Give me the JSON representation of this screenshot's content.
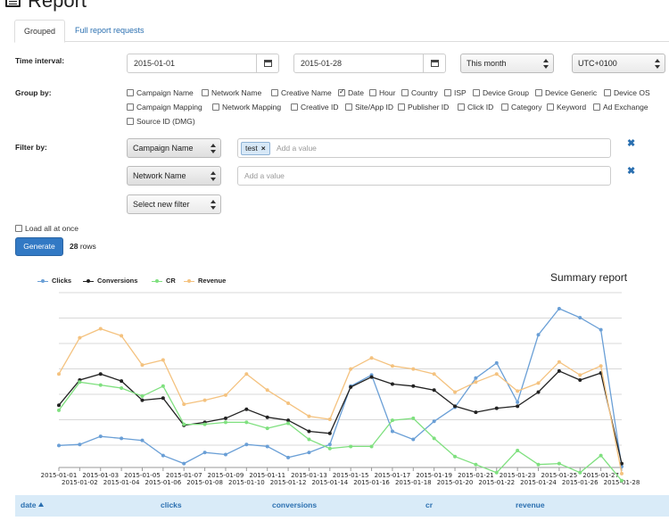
{
  "page_title": "Report",
  "tabs": [
    "Grouped",
    "Full report requests"
  ],
  "labels": {
    "time_interval": "Time interval:",
    "group_by": "Group by:",
    "filter_by": "Filter by:"
  },
  "time": {
    "start_date": "2015-01-01",
    "end_date": "2015-01-28",
    "period": "This month",
    "timezone": "UTC+0100"
  },
  "group_by": [
    {
      "label": "Campaign Name",
      "checked": false
    },
    {
      "label": "Network Name",
      "checked": false
    },
    {
      "label": "Creative Name",
      "checked": false
    },
    {
      "label": "Date",
      "checked": true
    },
    {
      "label": "Hour",
      "checked": false
    },
    {
      "label": "Country",
      "checked": false
    },
    {
      "label": "ISP",
      "checked": false
    },
    {
      "label": "Device Group",
      "checked": false
    },
    {
      "label": "Device Generic",
      "checked": false
    },
    {
      "label": "Device OS",
      "checked": false
    },
    {
      "label": "Campaign Mapping",
      "checked": false
    },
    {
      "label": "Network Mapping",
      "checked": false
    },
    {
      "label": "Creative ID",
      "checked": false
    },
    {
      "label": "Site/App ID",
      "checked": false
    },
    {
      "label": "Publisher ID",
      "checked": false
    },
    {
      "label": "Click ID",
      "checked": false
    },
    {
      "label": "Category",
      "checked": false
    },
    {
      "label": "Keyword",
      "checked": false
    },
    {
      "label": "Ad Exchange",
      "checked": false
    },
    {
      "label": "Source ID (DMG)",
      "checked": false
    }
  ],
  "filters": {
    "filter1_field": "Campaign Name",
    "filter1_tag": "test",
    "filter1_placeholder": "Add a value",
    "filter2_field": "Network Name",
    "filter2_placeholder": "Add a value",
    "new_filter": "Select new filter",
    "remove_glyph": "✖"
  },
  "load_all_label": "Load all at once",
  "generate_label": "Generate",
  "row_count": "28",
  "rows_suffix": "rows",
  "chart_data": {
    "type": "line",
    "title": "Summary report",
    "legend_position": "top-left",
    "grid": true,
    "x": [
      "2015-01-01",
      "2015-01-02",
      "2015-01-03",
      "2015-01-04",
      "2015-01-05",
      "2015-01-06",
      "2015-01-07",
      "2015-01-08",
      "2015-01-09",
      "2015-01-10",
      "2015-01-11",
      "2015-01-12",
      "2015-01-13",
      "2015-01-14",
      "2015-01-15",
      "2015-01-16",
      "2015-01-17",
      "2015-01-18",
      "2015-01-19",
      "2015-01-20",
      "2015-01-21",
      "2015-01-22",
      "2015-01-23",
      "2015-01-24",
      "2015-01-25",
      "2015-01-26",
      "2015-01-27",
      "2015-01-28"
    ],
    "ylim": [
      0,
      180
    ],
    "series": [
      {
        "name": "Clicks",
        "color": "#6a9fd6",
        "values": [
          21,
          22,
          30,
          28,
          26,
          11,
          3,
          14,
          12,
          22,
          20,
          9,
          14,
          22,
          80,
          91,
          35,
          27,
          45,
          59,
          88,
          103,
          64,
          131,
          157,
          148,
          136,
          0
        ]
      },
      {
        "name": "Conversions",
        "color": "#222222",
        "values": [
          61,
          86,
          92,
          85,
          66,
          68,
          41,
          44,
          48,
          57,
          49,
          46,
          35,
          33,
          79,
          89,
          82,
          80,
          76,
          60,
          54,
          58,
          60,
          74,
          95,
          86,
          93,
          3
        ]
      },
      {
        "name": "CR",
        "color": "#7fe07f",
        "values": [
          56,
          84,
          81,
          78,
          70,
          80,
          42,
          42,
          44,
          44,
          38,
          43,
          27,
          18,
          20,
          20,
          46,
          48,
          28,
          10,
          2,
          -6,
          16,
          2,
          3,
          -6,
          11,
          -14
        ]
      },
      {
        "name": "Revenue",
        "color": "#f4c27f",
        "values": [
          92,
          128,
          137,
          130,
          101,
          106,
          62,
          66,
          71,
          92,
          76,
          63,
          50,
          47,
          97,
          108,
          100,
          97,
          92,
          74,
          84,
          92,
          75,
          83,
          104,
          91,
          100,
          -7
        ]
      }
    ]
  },
  "table_headers": [
    "date",
    "clicks",
    "conversions",
    "cr",
    "revenue"
  ]
}
